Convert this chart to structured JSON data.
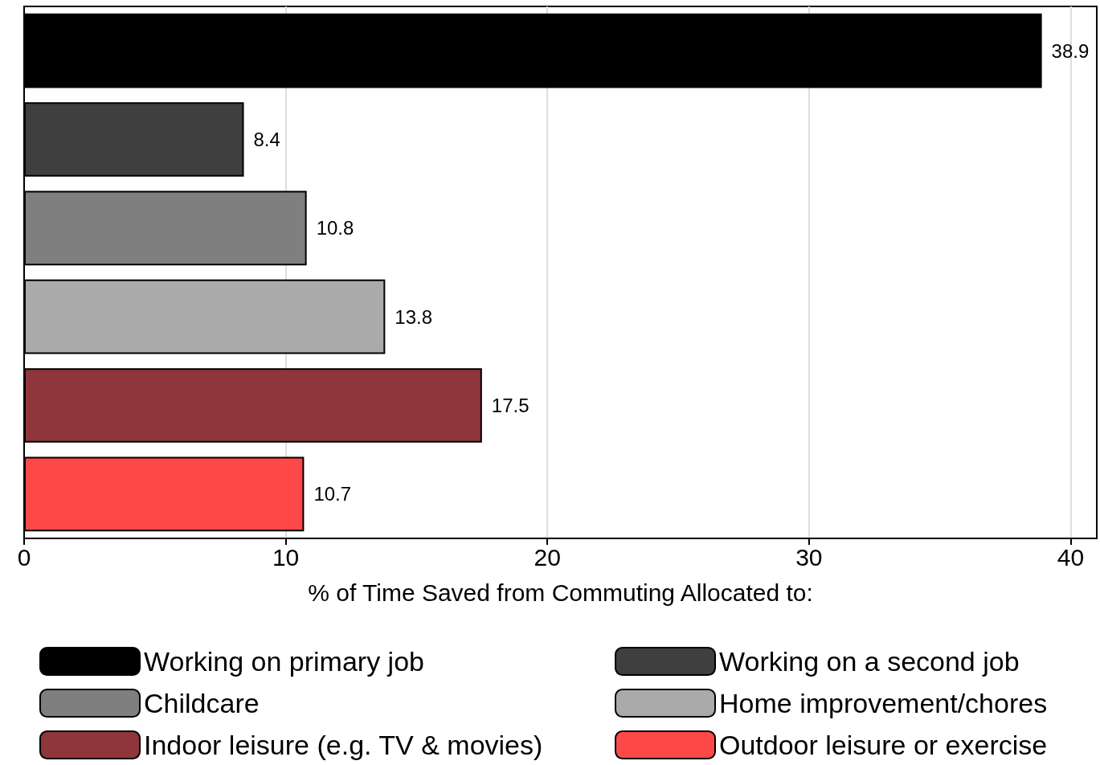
{
  "chart_data": {
    "type": "bar",
    "orientation": "horizontal",
    "xlabel": "% of Time Saved from Commuting Allocated to:",
    "categories": [
      null,
      null,
      null,
      null,
      null,
      null
    ],
    "series": [
      {
        "name": "Working on primary job",
        "color": "#000000",
        "values": [
          38.9,
          null,
          null,
          null,
          null,
          null
        ]
      },
      {
        "name": "Working on a second job",
        "color": "#3f3f3f",
        "values": [
          null,
          8.4,
          null,
          null,
          null,
          null
        ]
      },
      {
        "name": "Childcare",
        "color": "#7f7f7f",
        "values": [
          null,
          null,
          10.8,
          null,
          null,
          null
        ]
      },
      {
        "name": "Home improvement/chores",
        "color": "#aaaaaa",
        "values": [
          null,
          null,
          null,
          13.8,
          null,
          null
        ]
      },
      {
        "name": "Indoor leisure (e.g. TV & movies)",
        "color": "#8e363c",
        "values": [
          null,
          null,
          null,
          null,
          17.5,
          null
        ]
      },
      {
        "name": "Outdoor leisure or exercise",
        "color": "#ff4848",
        "values": [
          null,
          null,
          null,
          null,
          null,
          10.7
        ]
      }
    ],
    "xlim": [
      0,
      41
    ],
    "xticks": [
      0,
      10,
      20,
      30,
      40
    ],
    "grid": "x",
    "data_labels": true,
    "legend": "bottom"
  }
}
